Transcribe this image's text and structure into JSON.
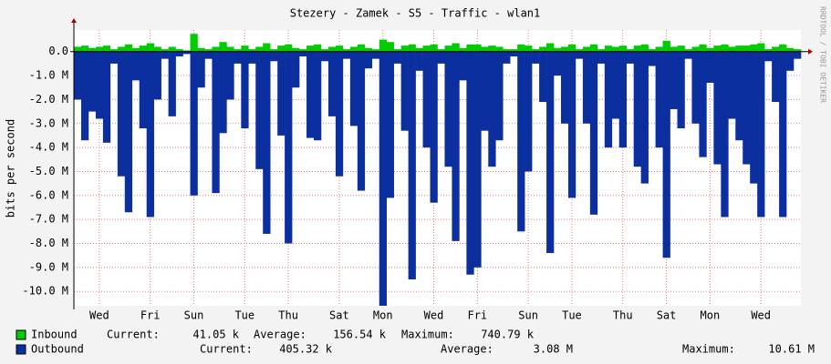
{
  "chart_data": {
    "type": "bar",
    "title": "Stezery - Zamek - S5 - Traffic - wlan1",
    "y_label": "bits per second",
    "watermark": "RRDTOOL / TOBI OETIKER",
    "categories": [
      null,
      null,
      null,
      "Wed",
      null,
      null,
      null,
      null,
      null,
      null,
      "Fri",
      null,
      null,
      null,
      null,
      null,
      "Sun",
      null,
      null,
      null,
      null,
      null,
      null,
      "Tue",
      null,
      null,
      null,
      null,
      null,
      "Thu",
      null,
      null,
      null,
      null,
      null,
      null,
      "Sat",
      null,
      null,
      null,
      null,
      null,
      "Mon",
      null,
      null,
      null,
      null,
      null,
      null,
      "Wed",
      null,
      null,
      null,
      null,
      null,
      "Fri",
      null,
      null,
      null,
      null,
      null,
      null,
      "Sun",
      null,
      null,
      null,
      null,
      null,
      "Tue",
      null,
      null,
      null,
      null,
      null,
      null,
      "Thu",
      null,
      null,
      null,
      null,
      null,
      "Sat",
      null,
      null,
      null,
      null,
      null,
      "Mon",
      null,
      null,
      null,
      null,
      null,
      null,
      "Wed",
      null,
      null,
      null,
      null,
      null
    ],
    "series": [
      {
        "name": "Inbound",
        "color": "#00cc00",
        "stats": [
          {
            "label": "Current:",
            "value": "41.05 k"
          },
          {
            "label": "Average:",
            "value": "156.54 k"
          },
          {
            "label": "Maximum:",
            "value": "740.79 k"
          }
        ],
        "values": [
          200000,
          250000,
          150000,
          200000,
          250000,
          100000,
          200000,
          300000,
          150000,
          250000,
          350000,
          200000,
          100000,
          200000,
          100000,
          50000,
          740000,
          150000,
          100000,
          200000,
          400000,
          200000,
          100000,
          250000,
          100000,
          200000,
          350000,
          100000,
          250000,
          300000,
          150000,
          100000,
          250000,
          300000,
          100000,
          200000,
          250000,
          100000,
          200000,
          300000,
          150000,
          100000,
          500000,
          400000,
          100000,
          250000,
          300000,
          150000,
          250000,
          300000,
          100000,
          250000,
          350000,
          150000,
          300000,
          300000,
          200000,
          250000,
          200000,
          100000,
          100000,
          300000,
          250000,
          100000,
          200000,
          350000,
          150000,
          200000,
          300000,
          100000,
          200000,
          300000,
          100000,
          250000,
          200000,
          250000,
          100000,
          250000,
          300000,
          100000,
          200000,
          450000,
          200000,
          250000,
          100000,
          200000,
          300000,
          150000,
          250000,
          300000,
          200000,
          250000,
          250000,
          300000,
          350000,
          100000,
          200000,
          300000,
          150000,
          100000
        ]
      },
      {
        "name": "Outbound",
        "color": "#0b2f9e",
        "stats": [
          {
            "label": "Current:",
            "value": "405.32 k"
          },
          {
            "label": "Average:",
            "value": "3.08 M"
          },
          {
            "label": "Maximum:",
            "value": "10.61 M"
          }
        ],
        "values": [
          -2000000,
          -3700000,
          -2500000,
          -2800000,
          -3800000,
          -500000,
          -5200000,
          -6700000,
          -1200000,
          -3200000,
          -6900000,
          -2000000,
          -300000,
          -2700000,
          -200000,
          -100000,
          -6000000,
          -1500000,
          -300000,
          -5900000,
          -3400000,
          -2000000,
          -500000,
          -3200000,
          -500000,
          -4900000,
          -7600000,
          -400000,
          -3500000,
          -8000000,
          -1500000,
          -200000,
          -3600000,
          -3700000,
          -400000,
          -2700000,
          -5200000,
          -300000,
          -3100000,
          -5800000,
          -700000,
          -300000,
          -10600000,
          -6100000,
          -500000,
          -3300000,
          -9500000,
          -800000,
          -4000000,
          -6300000,
          -500000,
          -4800000,
          -7900000,
          -1200000,
          -9300000,
          -9000000,
          -3300000,
          -4800000,
          -3700000,
          -500000,
          -200000,
          -7500000,
          -5000000,
          -500000,
          -2100000,
          -8400000,
          -1000000,
          -3000000,
          -6100000,
          -300000,
          -3000000,
          -6800000,
          -500000,
          -4000000,
          -2800000,
          -4000000,
          -500000,
          -4800000,
          -5500000,
          -600000,
          -4000000,
          -8600000,
          -2400000,
          -3200000,
          -300000,
          -3000000,
          -4400000,
          -1300000,
          -4700000,
          -6900000,
          -2800000,
          -3700000,
          -4700000,
          -5500000,
          -6900000,
          -400000,
          -2100000,
          -6900000,
          -800000,
          -300000
        ]
      }
    ],
    "ylim": [
      -10600000,
      900000
    ],
    "yticks": [
      {
        "value": 0,
        "label": "0.0"
      },
      {
        "value": -1000000,
        "label": "-1.0 M"
      },
      {
        "value": -2000000,
        "label": "-2.0 M"
      },
      {
        "value": -3000000,
        "label": "-3.0 M"
      },
      {
        "value": -4000000,
        "label": "-4.0 M"
      },
      {
        "value": -5000000,
        "label": "-5.0 M"
      },
      {
        "value": -6000000,
        "label": "-6.0 M"
      },
      {
        "value": -7000000,
        "label": "-7.0 M"
      },
      {
        "value": -8000000,
        "label": "-8.0 M"
      },
      {
        "value": -9000000,
        "label": "-9.0 M"
      },
      {
        "value": -10000000,
        "label": "-10.0 M"
      }
    ],
    "grid": true
  }
}
